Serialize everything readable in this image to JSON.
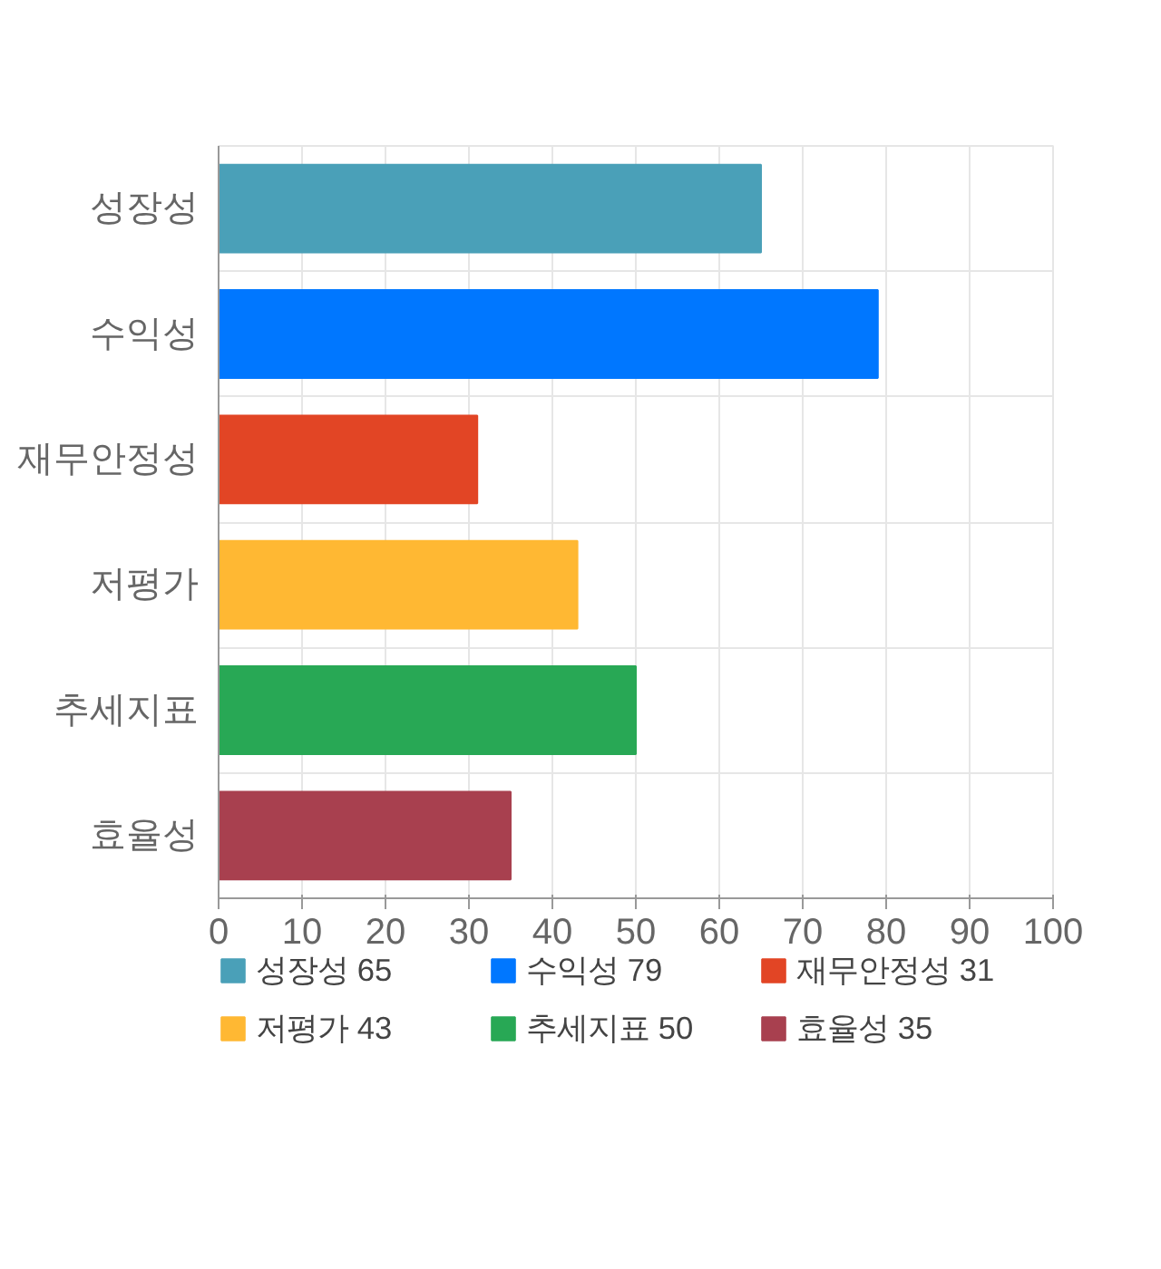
{
  "chart_data": {
    "type": "bar",
    "orientation": "horizontal",
    "categories": [
      "성장성",
      "수익성",
      "재무안정성",
      "저평가",
      "추세지표",
      "효율성"
    ],
    "series": [
      {
        "name": "성장성 65",
        "color": "#4aa0b8",
        "values": [
          65,
          null,
          null,
          null,
          null,
          null
        ]
      },
      {
        "name": "수익성 79",
        "color": "#0077ff",
        "values": [
          null,
          79,
          null,
          null,
          null,
          null
        ]
      },
      {
        "name": "재무안정성 31",
        "color": "#e24525",
        "values": [
          null,
          null,
          31,
          null,
          null,
          null
        ]
      },
      {
        "name": "저평가 43",
        "color": "#ffb833",
        "values": [
          null,
          null,
          null,
          43,
          null,
          null
        ]
      },
      {
        "name": "추세지표 50",
        "color": "#28a855",
        "values": [
          null,
          null,
          null,
          null,
          50,
          null
        ]
      },
      {
        "name": "효율성 35",
        "color": "#a8404f",
        "values": [
          null,
          null,
          null,
          null,
          null,
          35
        ]
      }
    ],
    "xlim": [
      0,
      100
    ],
    "xticks": [
      0,
      10,
      20,
      30,
      40,
      50,
      60,
      70,
      80,
      90,
      100
    ],
    "grid": true,
    "legend": "bottom"
  }
}
